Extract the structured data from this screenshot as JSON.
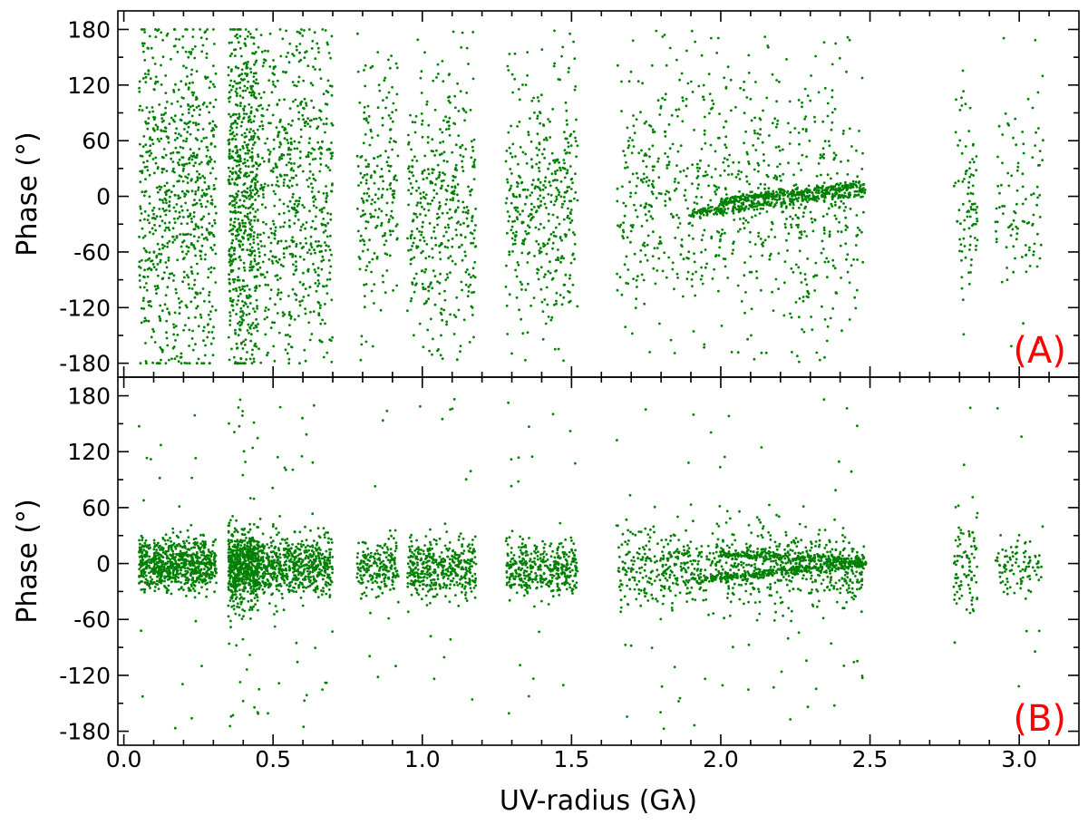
{
  "chart_data": {
    "type": "scatter",
    "point_color": "#008000",
    "xlabel": "UV-radius (Gλ)",
    "xlim": [
      -0.02,
      3.2
    ],
    "xticks": [
      0.0,
      0.5,
      1.0,
      1.5,
      2.0,
      2.5,
      3.0
    ],
    "xtick_labels": [
      "0.0",
      "0.5",
      "1.0",
      "1.5",
      "2.0",
      "2.5",
      "3.0"
    ],
    "x_minor_step": 0.1,
    "panels": [
      {
        "label": "(A)",
        "label_color": "#ff0000",
        "ylabel": "Phase (°)",
        "ylim": [
          -195,
          200
        ],
        "yticks": [
          180,
          120,
          60,
          0,
          -60,
          -120,
          -180
        ],
        "ytick_labels": [
          "180",
          "120",
          "60",
          "0",
          "-60",
          "-120",
          "-180"
        ],
        "tracks": [
          {
            "x": [
              0.05,
              0.31
            ],
            "spread": 95,
            "center": 0,
            "bg": 0.32,
            "w": 3.0
          },
          {
            "x": [
              0.35,
              0.45
            ],
            "spread": 90,
            "center": -5,
            "bg": 0.35,
            "w": 2.5
          },
          {
            "x": [
              0.45,
              0.7
            ],
            "spread": 80,
            "center": 0,
            "bg": 0.35,
            "w": 2.4
          },
          {
            "x": [
              0.78,
              0.92
            ],
            "spread": 60,
            "center": 0,
            "bg": 0.22,
            "w": 0.8
          },
          {
            "x": [
              0.95,
              1.18
            ],
            "spread": 55,
            "center": -5,
            "bg": 0.25,
            "w": 1.6
          },
          {
            "x": [
              1.28,
              1.52
            ],
            "spread": 55,
            "center": -5,
            "bg": 0.25,
            "w": 1.6
          },
          {
            "x": [
              1.65,
              2.48
            ],
            "spread": 55,
            "center": -5,
            "bg": 0.28,
            "w": 3.2
          },
          {
            "x": [
              2.78,
              2.86
            ],
            "spread": 55,
            "center": 0,
            "bg": 0.2,
            "w": 0.35
          },
          {
            "x": [
              2.92,
              3.08
            ],
            "spread": 50,
            "center": 0,
            "bg": 0.15,
            "w": 0.4
          }
        ],
        "streak": {
          "x": [
            1.9,
            2.49
          ],
          "y": [
            -18,
            5
          ]
        },
        "streak2": {
          "x": [
            2.0,
            2.48
          ],
          "y": [
            -5,
            12
          ]
        }
      },
      {
        "label": "(B)",
        "label_color": "#ff0000",
        "ylabel": "Phase (°)",
        "ylim": [
          -195,
          200
        ],
        "yticks": [
          180,
          120,
          60,
          0,
          -60,
          -120,
          -180
        ],
        "ytick_labels": [
          "180",
          "120",
          "60",
          "0",
          "-60",
          "-120",
          "-180"
        ],
        "tracks": [
          {
            "x": [
              0.05,
              0.31
            ],
            "spread": 14,
            "center": 0,
            "bg": 0.05,
            "w": 3.0
          },
          {
            "x": [
              0.35,
              0.45
            ],
            "spread": 20,
            "center": -5,
            "bg": 0.06,
            "w": 2.5
          },
          {
            "x": [
              0.45,
              0.7
            ],
            "spread": 17,
            "center": -3,
            "bg": 0.06,
            "w": 2.4
          },
          {
            "x": [
              0.78,
              0.92
            ],
            "spread": 14,
            "center": -5,
            "bg": 0.05,
            "w": 0.8
          },
          {
            "x": [
              0.95,
              1.18
            ],
            "spread": 16,
            "center": -5,
            "bg": 0.05,
            "w": 1.6
          },
          {
            "x": [
              1.28,
              1.52
            ],
            "spread": 14,
            "center": -5,
            "bg": 0.05,
            "w": 1.6
          },
          {
            "x": [
              1.65,
              2.48
            ],
            "spread": 20,
            "center": -5,
            "bg": 0.1,
            "w": 3.2
          },
          {
            "x": [
              2.78,
              2.86
            ],
            "spread": 28,
            "center": 0,
            "bg": 0.12,
            "w": 0.35
          },
          {
            "x": [
              2.92,
              3.08
            ],
            "spread": 14,
            "center": -2,
            "bg": 0.08,
            "w": 0.4
          }
        ],
        "streak": {
          "x": [
            1.9,
            2.49
          ],
          "y": [
            -18,
            0
          ]
        },
        "streak2": {
          "x": [
            2.0,
            2.48
          ],
          "y": [
            10,
            2
          ]
        }
      }
    ]
  }
}
